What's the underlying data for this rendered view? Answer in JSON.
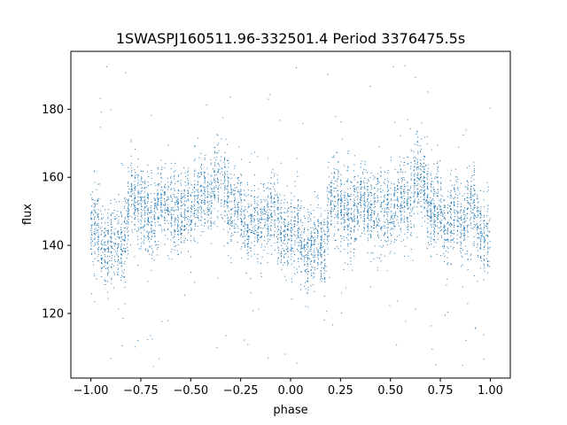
{
  "chart_data": {
    "type": "scatter",
    "title": "1SWASPJ160511.96-332501.4 Period 3376475.5s",
    "xlabel": "phase",
    "ylabel": "flux",
    "xlim": [
      -1.1,
      1.1
    ],
    "ylim": [
      101,
      197
    ],
    "xticks": [
      -1.0,
      -0.75,
      -0.5,
      -0.25,
      0.0,
      0.25,
      0.5,
      0.75,
      1.0
    ],
    "xtick_labels": [
      "−1.00",
      "−0.75",
      "−0.50",
      "−0.25",
      "0.00",
      "0.25",
      "0.50",
      "0.75",
      "1.00"
    ],
    "yticks": [
      120,
      140,
      160,
      180
    ],
    "ytick_labels": [
      "120",
      "140",
      "160",
      "180"
    ],
    "grid": false,
    "marker_color": "#1f77b4",
    "series": [
      {
        "values_by_phase_profile": [
          {
            "phase": 0.0,
            "flux": 143
          },
          {
            "phase": 0.03,
            "flux": 147
          },
          {
            "phase": 0.05,
            "flux": 140
          },
          {
            "phase": 0.08,
            "flux": 138
          },
          {
            "phase": 0.12,
            "flux": 142
          },
          {
            "phase": 0.17,
            "flux": 139
          },
          {
            "phase": 0.2,
            "flux": 155
          },
          {
            "phase": 0.25,
            "flux": 152
          },
          {
            "phase": 0.3,
            "flux": 147
          },
          {
            "phase": 0.35,
            "flux": 153
          },
          {
            "phase": 0.4,
            "flux": 150
          },
          {
            "phase": 0.45,
            "flux": 150
          },
          {
            "phase": 0.5,
            "flux": 150
          },
          {
            "phase": 0.55,
            "flux": 155
          },
          {
            "phase": 0.6,
            "flux": 152
          },
          {
            "phase": 0.63,
            "flux": 162
          },
          {
            "phase": 0.67,
            "flux": 158
          },
          {
            "phase": 0.7,
            "flux": 150
          },
          {
            "phase": 0.75,
            "flux": 152
          },
          {
            "phase": 0.78,
            "flux": 143
          },
          {
            "phase": 0.82,
            "flux": 150
          },
          {
            "phase": 0.85,
            "flux": 145
          },
          {
            "phase": 0.88,
            "flux": 148
          },
          {
            "phase": 0.92,
            "flux": 152
          },
          {
            "phase": 0.95,
            "flux": 143
          },
          {
            "phase": 1.0,
            "flux": 143
          }
        ],
        "points_count": 5200,
        "scatter_sigma_flux": 5.5,
        "outlier_range": [
          104,
          193
        ]
      }
    ]
  }
}
